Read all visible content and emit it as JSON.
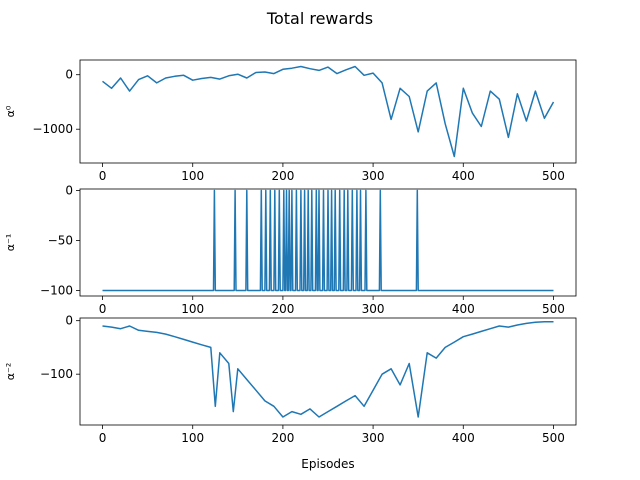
{
  "figure": {
    "title": "Total rewards",
    "xlabel": "Episodes",
    "line_color": "#1f77b4"
  },
  "chart_data": [
    {
      "type": "line",
      "ylabel": "α⁰",
      "xlim": [
        -25,
        525
      ],
      "ylim": [
        -1620,
        270
      ],
      "x_ticks": [
        0,
        100,
        200,
        300,
        400,
        500
      ],
      "y_ticks": [
        0,
        -1000
      ],
      "x_tick_labels": [
        "0",
        "100",
        "200",
        "300",
        "400",
        "500"
      ],
      "y_tick_labels": [
        "0",
        "−1000"
      ],
      "series": [
        {
          "x": [
            0,
            10,
            20,
            30,
            40,
            50,
            60,
            70,
            80,
            90,
            100,
            110,
            120,
            130,
            140,
            150,
            160,
            170,
            180,
            190,
            200,
            210,
            220,
            230,
            240,
            250,
            260,
            270,
            280,
            290,
            300,
            310,
            320,
            330,
            340,
            350,
            360,
            370,
            380,
            390,
            400,
            410,
            420,
            430,
            440,
            450,
            460,
            470,
            480,
            490,
            500
          ],
          "y": [
            -120,
            -250,
            -60,
            -300,
            -90,
            -20,
            -150,
            -60,
            -30,
            -10,
            -100,
            -70,
            -50,
            -80,
            -20,
            10,
            -60,
            40,
            50,
            20,
            100,
            120,
            150,
            110,
            80,
            140,
            20,
            90,
            150,
            -10,
            30,
            -150,
            -820,
            -250,
            -400,
            -1050,
            -300,
            -150,
            -900,
            -1500,
            -250,
            -700,
            -950,
            -300,
            -450,
            -1150,
            -350,
            -850,
            -300,
            -800,
            -500
          ]
        }
      ]
    },
    {
      "type": "line",
      "ylabel": "α⁻¹",
      "xlim": [
        -25,
        525
      ],
      "ylim": [
        -105.5,
        1.5
      ],
      "x_ticks": [
        0,
        100,
        200,
        300,
        400,
        500
      ],
      "y_ticks": [
        0,
        -50,
        -100
      ],
      "x_tick_labels": [
        "0",
        "100",
        "200",
        "300",
        "400",
        "500"
      ],
      "y_tick_labels": [
        "0",
        "−50",
        "−100"
      ],
      "series": [
        {
          "spike_episodes": [
            124,
            147,
            160,
            176,
            181,
            186,
            191,
            196,
            201,
            204,
            207,
            210,
            215,
            220,
            224,
            228,
            232,
            237,
            240,
            245,
            250,
            254,
            258,
            263,
            268,
            272,
            277,
            282,
            286,
            292,
            308,
            349
          ],
          "baseline": -100,
          "peak": 0
        }
      ]
    },
    {
      "type": "line",
      "ylabel": "α⁻²",
      "xlim": [
        -25,
        525
      ],
      "ylim": [
        -195,
        5
      ],
      "x_ticks": [
        0,
        100,
        200,
        300,
        400,
        500
      ],
      "y_ticks": [
        0,
        -100
      ],
      "x_tick_labels": [
        "0",
        "100",
        "200",
        "300",
        "400",
        "500"
      ],
      "y_tick_labels": [
        "0",
        "−100"
      ],
      "series": [
        {
          "x": [
            0,
            10,
            20,
            30,
            40,
            50,
            60,
            70,
            80,
            90,
            100,
            110,
            120,
            125,
            130,
            140,
            145,
            150,
            160,
            170,
            180,
            190,
            200,
            210,
            220,
            230,
            240,
            250,
            260,
            270,
            280,
            290,
            300,
            310,
            320,
            330,
            340,
            350,
            360,
            370,
            380,
            390,
            400,
            410,
            420,
            430,
            440,
            450,
            460,
            470,
            480,
            490,
            500
          ],
          "y": [
            -10,
            -12,
            -15,
            -10,
            -18,
            -20,
            -22,
            -25,
            -30,
            -35,
            -40,
            -45,
            -50,
            -160,
            -60,
            -80,
            -170,
            -90,
            -110,
            -130,
            -150,
            -160,
            -180,
            -170,
            -175,
            -165,
            -180,
            -170,
            -160,
            -150,
            -140,
            -160,
            -130,
            -100,
            -90,
            -120,
            -80,
            -180,
            -60,
            -70,
            -50,
            -40,
            -30,
            -25,
            -20,
            -15,
            -10,
            -12,
            -8,
            -5,
            -3,
            -2,
            -2
          ]
        }
      ]
    }
  ]
}
